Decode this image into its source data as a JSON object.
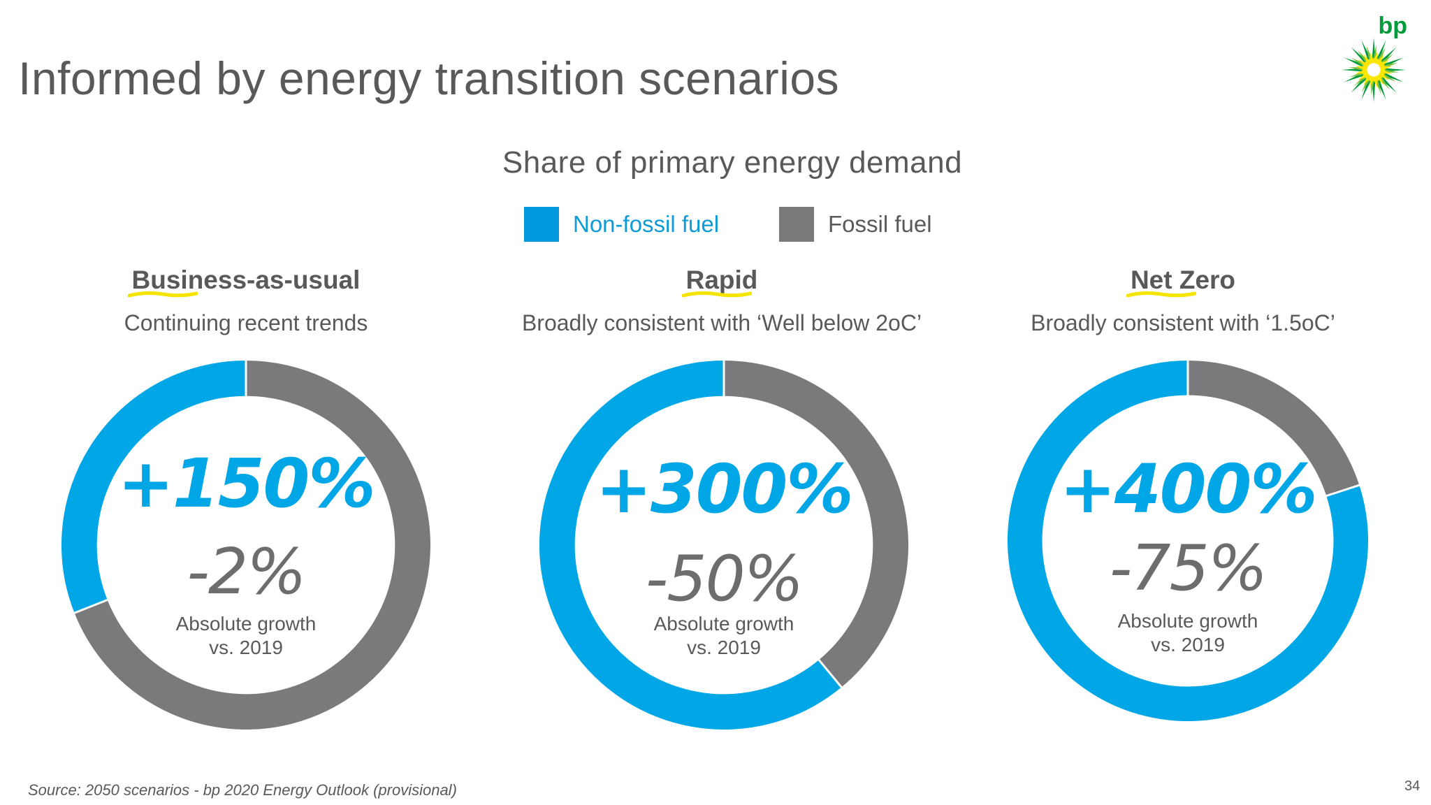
{
  "page": {
    "title": "Informed by energy transition scenarios",
    "source": "Source: 2050 scenarios - bp 2020 Energy Outlook (provisional)",
    "page_number": "34",
    "logo_text": "bp"
  },
  "colors": {
    "non_fossil": "#00a6e6",
    "fossil": "#7a7a7c",
    "highlight": "#f5e400"
  },
  "chart_data": {
    "type": "pie",
    "title": "Share of primary energy demand",
    "legend": [
      "Non-fossil fuel",
      "Fossil fuel"
    ],
    "legend_placement": "top-center",
    "series_labels": [
      "Non-fossil fuel",
      "Fossil fuel"
    ],
    "scenarios": [
      {
        "name": "Business-as-usual",
        "description": "Continuing recent trends",
        "non_fossil_share": 0.31,
        "fossil_share": 0.69,
        "non_fossil_growth": "+150%",
        "fossil_growth": "-2%",
        "caption_line1": "Absolute growth",
        "caption_line2": "vs. 2019"
      },
      {
        "name": "Rapid",
        "description": "Broadly consistent with ‘Well below 2oC’",
        "non_fossil_share": 0.61,
        "fossil_share": 0.39,
        "non_fossil_growth": "+300%",
        "fossil_growth": "-50%",
        "caption_line1": "Absolute growth",
        "caption_line2": "vs. 2019"
      },
      {
        "name": "Net Zero",
        "description": "Broadly consistent with ‘1.5oC’",
        "non_fossil_share": 0.8,
        "fossil_share": 0.2,
        "non_fossil_growth": "+400%",
        "fossil_growth": "-75%",
        "caption_line1": "Absolute growth",
        "caption_line2": "vs. 2019"
      }
    ]
  }
}
